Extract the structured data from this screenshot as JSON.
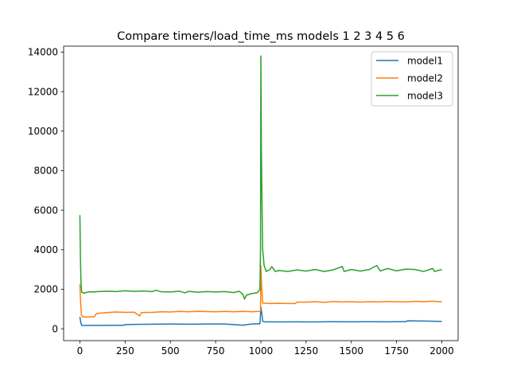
{
  "chart_data": {
    "type": "line",
    "title": "Compare timers/load_time_ms models 1 2 3 4 5 6",
    "xlabel": "",
    "ylabel": "",
    "xlim": [
      -90,
      2090
    ],
    "ylim": [
      -600,
      14300
    ],
    "x_ticks": [
      0,
      250,
      500,
      750,
      1000,
      1250,
      1500,
      1750,
      2000
    ],
    "x_tick_labels": [
      "0",
      "250",
      "500",
      "750",
      "1000",
      "1250",
      "1500",
      "1750",
      "2000"
    ],
    "y_ticks": [
      0,
      2000,
      4000,
      6000,
      8000,
      10000,
      12000,
      14000
    ],
    "y_tick_labels": [
      "0",
      "2000",
      "4000",
      "6000",
      "8000",
      "10000",
      "12000",
      "14000"
    ],
    "grid": false,
    "legend_position": "top-right",
    "series": [
      {
        "name": "model1",
        "color": "#1f77b4",
        "points": [
          [
            0,
            600
          ],
          [
            5,
            300
          ],
          [
            10,
            170
          ],
          [
            50,
            170
          ],
          [
            100,
            170
          ],
          [
            200,
            175
          ],
          [
            240,
            175
          ],
          [
            250,
            210
          ],
          [
            300,
            220
          ],
          [
            400,
            230
          ],
          [
            500,
            240
          ],
          [
            600,
            230
          ],
          [
            700,
            240
          ],
          [
            800,
            240
          ],
          [
            900,
            180
          ],
          [
            950,
            240
          ],
          [
            990,
            250
          ],
          [
            995,
            250
          ],
          [
            1000,
            1100
          ],
          [
            1005,
            800
          ],
          [
            1010,
            380
          ],
          [
            1020,
            350
          ],
          [
            1100,
            345
          ],
          [
            1200,
            350
          ],
          [
            1300,
            345
          ],
          [
            1400,
            355
          ],
          [
            1500,
            350
          ],
          [
            1600,
            355
          ],
          [
            1700,
            350
          ],
          [
            1800,
            360
          ],
          [
            1810,
            400
          ],
          [
            1900,
            390
          ],
          [
            2000,
            370
          ]
        ]
      },
      {
        "name": "model2",
        "color": "#ff7f0e",
        "points": [
          [
            0,
            2250
          ],
          [
            3,
            1500
          ],
          [
            8,
            700
          ],
          [
            15,
            600
          ],
          [
            50,
            600
          ],
          [
            80,
            610
          ],
          [
            90,
            760
          ],
          [
            100,
            780
          ],
          [
            150,
            820
          ],
          [
            200,
            850
          ],
          [
            250,
            830
          ],
          [
            300,
            840
          ],
          [
            330,
            650
          ],
          [
            340,
            820
          ],
          [
            400,
            830
          ],
          [
            450,
            860
          ],
          [
            500,
            850
          ],
          [
            550,
            880
          ],
          [
            600,
            860
          ],
          [
            650,
            880
          ],
          [
            700,
            870
          ],
          [
            750,
            860
          ],
          [
            800,
            880
          ],
          [
            850,
            860
          ],
          [
            900,
            880
          ],
          [
            950,
            860
          ],
          [
            990,
            880
          ],
          [
            998,
            880
          ],
          [
            1000,
            3200
          ],
          [
            1004,
            2200
          ],
          [
            1010,
            1300
          ],
          [
            1050,
            1280
          ],
          [
            1100,
            1290
          ],
          [
            1150,
            1280
          ],
          [
            1190,
            1280
          ],
          [
            1200,
            1350
          ],
          [
            1250,
            1350
          ],
          [
            1300,
            1370
          ],
          [
            1350,
            1340
          ],
          [
            1400,
            1380
          ],
          [
            1450,
            1360
          ],
          [
            1500,
            1370
          ],
          [
            1550,
            1350
          ],
          [
            1600,
            1370
          ],
          [
            1650,
            1360
          ],
          [
            1700,
            1380
          ],
          [
            1750,
            1370
          ],
          [
            1800,
            1360
          ],
          [
            1850,
            1390
          ],
          [
            1900,
            1370
          ],
          [
            1950,
            1400
          ],
          [
            2000,
            1360
          ]
        ]
      },
      {
        "name": "model3",
        "color": "#2ca02c",
        "points": [
          [
            0,
            5750
          ],
          [
            3,
            3500
          ],
          [
            6,
            2300
          ],
          [
            10,
            1850
          ],
          [
            20,
            1800
          ],
          [
            50,
            1870
          ],
          [
            80,
            1860
          ],
          [
            100,
            1880
          ],
          [
            150,
            1900
          ],
          [
            200,
            1880
          ],
          [
            250,
            1920
          ],
          [
            300,
            1890
          ],
          [
            350,
            1910
          ],
          [
            400,
            1880
          ],
          [
            420,
            1950
          ],
          [
            450,
            1870
          ],
          [
            500,
            1860
          ],
          [
            550,
            1900
          ],
          [
            580,
            1820
          ],
          [
            600,
            1890
          ],
          [
            650,
            1850
          ],
          [
            700,
            1880
          ],
          [
            750,
            1860
          ],
          [
            800,
            1880
          ],
          [
            850,
            1830
          ],
          [
            880,
            1900
          ],
          [
            900,
            1750
          ],
          [
            910,
            1500
          ],
          [
            920,
            1700
          ],
          [
            950,
            1780
          ],
          [
            980,
            1820
          ],
          [
            995,
            2000
          ],
          [
            998,
            4000
          ],
          [
            1000,
            13800
          ],
          [
            1003,
            9000
          ],
          [
            1006,
            6500
          ],
          [
            1010,
            4000
          ],
          [
            1018,
            3200
          ],
          [
            1030,
            2900
          ],
          [
            1050,
            3000
          ],
          [
            1060,
            3150
          ],
          [
            1080,
            2900
          ],
          [
            1100,
            2950
          ],
          [
            1150,
            2900
          ],
          [
            1200,
            2980
          ],
          [
            1250,
            2920
          ],
          [
            1300,
            3000
          ],
          [
            1350,
            2900
          ],
          [
            1400,
            2980
          ],
          [
            1450,
            3150
          ],
          [
            1460,
            2900
          ],
          [
            1500,
            3000
          ],
          [
            1550,
            2920
          ],
          [
            1600,
            3000
          ],
          [
            1640,
            3200
          ],
          [
            1660,
            2920
          ],
          [
            1700,
            3050
          ],
          [
            1750,
            2930
          ],
          [
            1800,
            3020
          ],
          [
            1850,
            3000
          ],
          [
            1900,
            2900
          ],
          [
            1950,
            3050
          ],
          [
            1960,
            2900
          ],
          [
            2000,
            3000
          ]
        ]
      }
    ]
  }
}
